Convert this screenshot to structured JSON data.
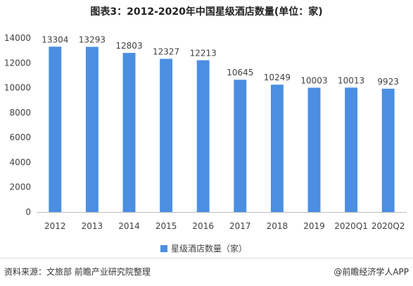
{
  "footer": {
    "source": "资料来源：文旅部 前瞻产业研究院整理",
    "brand": "@前瞻经济学人APP"
  },
  "colors": {
    "bar": "#4a8fe2"
  },
  "chart_data": {
    "type": "bar",
    "title": "图表3：2012-2020年中国星级酒店数量(单位：家)",
    "categories": [
      "2012",
      "2013",
      "2014",
      "2015",
      "2016",
      "2017",
      "2018",
      "2019",
      "2020Q1",
      "2020Q2"
    ],
    "series": [
      {
        "name": "星级酒店数量（家）",
        "values": [
          13304,
          13293,
          12803,
          12327,
          12213,
          10645,
          10249,
          10003,
          10013,
          9923
        ]
      }
    ],
    "ylim": [
      0,
      14000
    ],
    "yticks": [
      0,
      2000,
      4000,
      6000,
      8000,
      10000,
      12000,
      14000
    ],
    "data_labels": true,
    "grid": false,
    "legend_position": "bottom"
  }
}
